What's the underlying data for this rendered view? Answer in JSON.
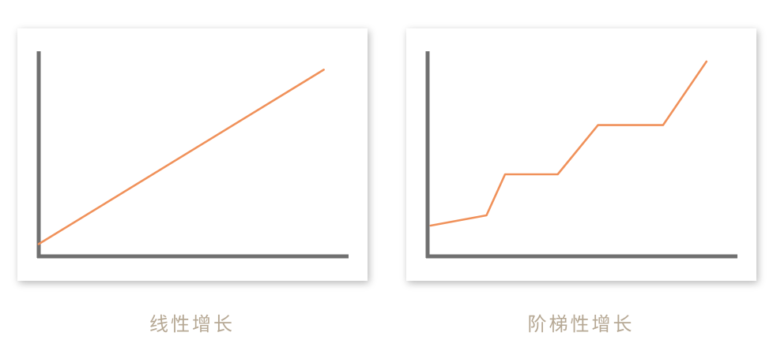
{
  "colors": {
    "axis": "#707070",
    "line": "#f0915a",
    "caption": "#b6a894",
    "panel_background": "#ffffff"
  },
  "chart_data": [
    {
      "type": "line",
      "caption": "线性增长",
      "xlabel": "",
      "ylabel": "",
      "xlim": [
        0,
        100
      ],
      "ylim": [
        0,
        100
      ],
      "grid": false,
      "series": [
        {
          "x": [
            0,
            92
          ],
          "y": [
            6,
            91
          ]
        }
      ]
    },
    {
      "type": "line",
      "caption": "阶梯性增长",
      "xlabel": "",
      "ylabel": "",
      "xlim": [
        0,
        100
      ],
      "ylim": [
        0,
        100
      ],
      "grid": false,
      "series": [
        {
          "x": [
            1,
            19,
            25,
            42,
            55,
            76,
            90
          ],
          "y": [
            15,
            20,
            40,
            40,
            64,
            64,
            95
          ]
        }
      ]
    }
  ]
}
